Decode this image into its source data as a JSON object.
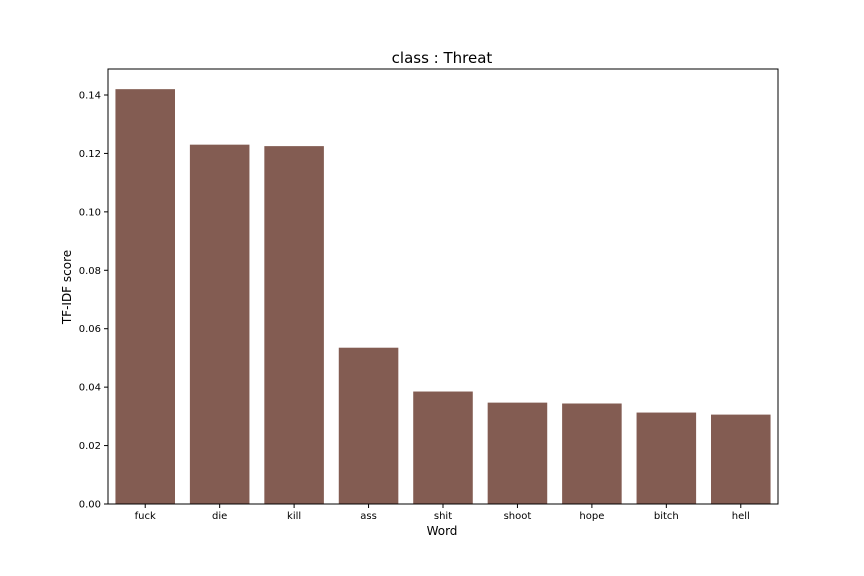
{
  "chart_data": {
    "type": "bar",
    "title": "class : Threat",
    "xlabel": "Word",
    "ylabel": "TF-IDF score",
    "categories": [
      "fuck",
      "die",
      "kill",
      "ass",
      "shit",
      "shoot",
      "hope",
      "bitch",
      "hell"
    ],
    "values": [
      0.142,
      0.123,
      0.1225,
      0.0535,
      0.0385,
      0.0347,
      0.0344,
      0.0313,
      0.0306
    ],
    "ylim": [
      0,
      0.1489
    ],
    "yticks": [
      "0.00",
      "0.02",
      "0.04",
      "0.06",
      "0.08",
      "0.10",
      "0.12",
      "0.14"
    ],
    "grid": false,
    "bar_color": "#835c52"
  }
}
